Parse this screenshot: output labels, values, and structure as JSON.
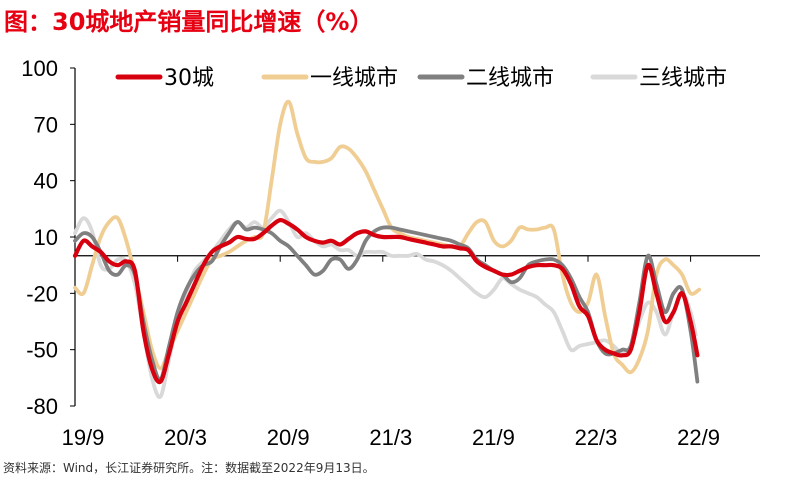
{
  "title": "图：30城地产销量同比增速（%）",
  "source": "资料来源：Wind，长江证券研究所。注：数据截至2022年9月13日。",
  "chart_data": {
    "type": "line",
    "title": "图：30城地产销量同比增速（%）",
    "xlabel": "",
    "ylabel": "",
    "ylim": [
      -80,
      100
    ],
    "yticks": [
      "100",
      "70",
      "40",
      "10",
      "-20",
      "-50",
      "-80"
    ],
    "xlim": [
      0,
      36.5
    ],
    "xticks": [
      {
        "label": "19/9",
        "x": 0
      },
      {
        "label": "20/3",
        "x": 6
      },
      {
        "label": "20/9",
        "x": 12
      },
      {
        "label": "21/3",
        "x": 18
      },
      {
        "label": "21/9",
        "x": 24
      },
      {
        "label": "22/3",
        "x": 30
      },
      {
        "label": "22/9",
        "x": 36
      }
    ],
    "grid": false,
    "legend_position": "top",
    "series": [
      {
        "name": "30城",
        "color": "#d7000f",
        "points": [
          [
            0,
            0
          ],
          [
            0.5,
            8
          ],
          [
            1,
            5
          ],
          [
            1.5,
            2
          ],
          [
            2,
            -3
          ],
          [
            2.5,
            -5
          ],
          [
            3,
            -3
          ],
          [
            3.5,
            -8
          ],
          [
            4,
            -40
          ],
          [
            4.5,
            -60
          ],
          [
            5,
            -67
          ],
          [
            5.5,
            -52
          ],
          [
            6,
            -35
          ],
          [
            6.5,
            -25
          ],
          [
            7,
            -15
          ],
          [
            7.5,
            -5
          ],
          [
            8,
            2
          ],
          [
            8.5,
            5
          ],
          [
            9,
            7
          ],
          [
            9.5,
            10
          ],
          [
            10,
            9
          ],
          [
            10.5,
            9
          ],
          [
            11,
            12
          ],
          [
            11.5,
            16
          ],
          [
            12,
            19
          ],
          [
            12.5,
            17
          ],
          [
            13,
            14
          ],
          [
            13.5,
            10
          ],
          [
            14,
            8
          ],
          [
            14.5,
            7
          ],
          [
            15,
            8
          ],
          [
            15.5,
            6
          ],
          [
            16,
            9
          ],
          [
            16.5,
            12
          ],
          [
            17,
            13
          ],
          [
            17.5,
            11
          ],
          [
            18,
            10
          ],
          [
            18.5,
            10
          ],
          [
            19,
            10
          ],
          [
            19.5,
            9
          ],
          [
            20,
            8
          ],
          [
            20.5,
            7
          ],
          [
            21,
            6
          ],
          [
            21.5,
            5
          ],
          [
            22,
            5
          ],
          [
            22.5,
            4
          ],
          [
            23,
            3
          ],
          [
            23.5,
            -3
          ],
          [
            24,
            -6
          ],
          [
            24.5,
            -8
          ],
          [
            25,
            -10
          ],
          [
            25.5,
            -10
          ],
          [
            26,
            -8
          ],
          [
            26.5,
            -6
          ],
          [
            27,
            -5
          ],
          [
            27.5,
            -5
          ],
          [
            28,
            -5
          ],
          [
            28.5,
            -7
          ],
          [
            29,
            -15
          ],
          [
            29.5,
            -27
          ],
          [
            30,
            -32
          ],
          [
            30.5,
            -45
          ],
          [
            31,
            -50
          ],
          [
            31.5,
            -52
          ],
          [
            32,
            -53
          ],
          [
            32.5,
            -50
          ],
          [
            33,
            -30
          ],
          [
            33.5,
            -5
          ],
          [
            34,
            -20
          ],
          [
            34.5,
            -35
          ],
          [
            35,
            -30
          ],
          [
            35.5,
            -20
          ],
          [
            36,
            -35
          ],
          [
            36.4,
            -53
          ]
        ]
      },
      {
        "name": "一线城市",
        "color": "#f0cd92",
        "points": [
          [
            0,
            -17
          ],
          [
            0.5,
            -20
          ],
          [
            1,
            -5
          ],
          [
            1.5,
            10
          ],
          [
            2,
            18
          ],
          [
            2.5,
            20
          ],
          [
            3,
            8
          ],
          [
            3.5,
            -10
          ],
          [
            4,
            -30
          ],
          [
            4.5,
            -50
          ],
          [
            5,
            -60
          ],
          [
            5.5,
            -50
          ],
          [
            6,
            -40
          ],
          [
            6.5,
            -30
          ],
          [
            7,
            -20
          ],
          [
            7.5,
            -10
          ],
          [
            8,
            -2
          ],
          [
            8.5,
            0
          ],
          [
            9,
            2
          ],
          [
            9.5,
            5
          ],
          [
            10,
            8
          ],
          [
            10.5,
            10
          ],
          [
            11,
            12
          ],
          [
            11.5,
            40
          ],
          [
            12,
            70
          ],
          [
            12.5,
            82
          ],
          [
            13,
            65
          ],
          [
            13.5,
            52
          ],
          [
            14,
            50
          ],
          [
            14.5,
            50
          ],
          [
            15,
            52
          ],
          [
            15.5,
            58
          ],
          [
            16,
            57
          ],
          [
            16.5,
            52
          ],
          [
            17,
            45
          ],
          [
            17.5,
            35
          ],
          [
            18,
            25
          ],
          [
            18.5,
            15
          ],
          [
            19,
            12
          ],
          [
            19.5,
            10
          ],
          [
            20,
            9
          ],
          [
            20.5,
            8
          ],
          [
            21,
            7
          ],
          [
            21.5,
            6
          ],
          [
            22,
            5
          ],
          [
            22.5,
            5
          ],
          [
            23,
            12
          ],
          [
            23.5,
            18
          ],
          [
            24,
            18
          ],
          [
            24.5,
            8
          ],
          [
            25,
            5
          ],
          [
            25.5,
            8
          ],
          [
            26,
            15
          ],
          [
            26.5,
            14
          ],
          [
            27,
            14
          ],
          [
            27.5,
            15
          ],
          [
            28,
            14
          ],
          [
            28.5,
            -10
          ],
          [
            29,
            -25
          ],
          [
            29.5,
            -30
          ],
          [
            30,
            -25
          ],
          [
            30.5,
            -10
          ],
          [
            31,
            -32
          ],
          [
            31.5,
            -52
          ],
          [
            32,
            -58
          ],
          [
            32.5,
            -62
          ],
          [
            33,
            -55
          ],
          [
            33.5,
            -40
          ],
          [
            34,
            -10
          ],
          [
            34.5,
            -2
          ],
          [
            35,
            -5
          ],
          [
            35.5,
            -10
          ],
          [
            36,
            -20
          ],
          [
            36.5,
            -18
          ]
        ]
      },
      {
        "name": "二线城市",
        "color": "#808080",
        "points": [
          [
            0,
            8
          ],
          [
            0.5,
            12
          ],
          [
            1,
            10
          ],
          [
            1.5,
            2
          ],
          [
            2,
            -8
          ],
          [
            2.5,
            -10
          ],
          [
            3,
            -5
          ],
          [
            3.5,
            -10
          ],
          [
            4,
            -35
          ],
          [
            4.5,
            -55
          ],
          [
            5,
            -66
          ],
          [
            5.5,
            -48
          ],
          [
            6,
            -30
          ],
          [
            6.5,
            -18
          ],
          [
            7,
            -10
          ],
          [
            7.5,
            -5
          ],
          [
            8,
            -3
          ],
          [
            8.5,
            5
          ],
          [
            9,
            12
          ],
          [
            9.5,
            18
          ],
          [
            10,
            14
          ],
          [
            10.5,
            15
          ],
          [
            11,
            14
          ],
          [
            11.5,
            12
          ],
          [
            12,
            8
          ],
          [
            12.5,
            5
          ],
          [
            13,
            0
          ],
          [
            13.5,
            -5
          ],
          [
            14,
            -10
          ],
          [
            14.5,
            -8
          ],
          [
            15,
            -2
          ],
          [
            15.5,
            -2
          ],
          [
            16,
            -7
          ],
          [
            16.5,
            -2
          ],
          [
            17,
            8
          ],
          [
            17.5,
            13
          ],
          [
            18,
            15
          ],
          [
            18.5,
            15
          ],
          [
            19,
            14
          ],
          [
            19.5,
            13
          ],
          [
            20,
            12
          ],
          [
            20.5,
            11
          ],
          [
            21,
            10
          ],
          [
            21.5,
            9
          ],
          [
            22,
            8
          ],
          [
            22.5,
            6
          ],
          [
            23,
            4
          ],
          [
            23.5,
            -2
          ],
          [
            24,
            -5
          ],
          [
            24.5,
            -8
          ],
          [
            25,
            -10
          ],
          [
            25.5,
            -14
          ],
          [
            26,
            -12
          ],
          [
            26.5,
            -5
          ],
          [
            27,
            -3
          ],
          [
            27.5,
            -2
          ],
          [
            28,
            -2
          ],
          [
            28.5,
            -5
          ],
          [
            29,
            -12
          ],
          [
            29.5,
            -22
          ],
          [
            30,
            -30
          ],
          [
            30.5,
            -45
          ],
          [
            31,
            -52
          ],
          [
            31.5,
            -52
          ],
          [
            32,
            -50
          ],
          [
            32.5,
            -48
          ],
          [
            33,
            -25
          ],
          [
            33.5,
            0
          ],
          [
            34,
            -15
          ],
          [
            34.5,
            -30
          ],
          [
            35,
            -20
          ],
          [
            35.5,
            -18
          ],
          [
            36,
            -40
          ],
          [
            36.4,
            -67
          ]
        ]
      },
      {
        "name": "三线城市",
        "color": "#d9d9d9",
        "points": [
          [
            0,
            12
          ],
          [
            0.5,
            20
          ],
          [
            1,
            13
          ],
          [
            1.5,
            -5
          ],
          [
            2,
            -7
          ],
          [
            2.5,
            -2
          ],
          [
            3,
            -3
          ],
          [
            3.5,
            -15
          ],
          [
            4,
            -40
          ],
          [
            4.5,
            -65
          ],
          [
            5,
            -75
          ],
          [
            5.5,
            -55
          ],
          [
            6,
            -35
          ],
          [
            6.5,
            -20
          ],
          [
            7,
            -8
          ],
          [
            7.5,
            -3
          ],
          [
            8,
            2
          ],
          [
            8.5,
            8
          ],
          [
            9,
            14
          ],
          [
            9.5,
            18
          ],
          [
            10,
            15
          ],
          [
            10.5,
            18
          ],
          [
            11,
            15
          ],
          [
            11.5,
            20
          ],
          [
            12,
            24
          ],
          [
            12.5,
            18
          ],
          [
            13,
            10
          ],
          [
            13.5,
            12
          ],
          [
            14,
            8
          ],
          [
            14.5,
            5
          ],
          [
            15,
            6
          ],
          [
            15.5,
            3
          ],
          [
            16,
            3
          ],
          [
            16.5,
            0
          ],
          [
            17,
            2
          ],
          [
            17.5,
            2
          ],
          [
            18,
            2
          ],
          [
            18.5,
            0
          ],
          [
            19,
            0
          ],
          [
            19.5,
            0
          ],
          [
            20,
            1
          ],
          [
            20.5,
            -2
          ],
          [
            21,
            -3
          ],
          [
            21.5,
            -5
          ],
          [
            22,
            -8
          ],
          [
            22.5,
            -12
          ],
          [
            23,
            -16
          ],
          [
            23.5,
            -20
          ],
          [
            24,
            -22
          ],
          [
            24.5,
            -18
          ],
          [
            25,
            -12
          ],
          [
            25.5,
            -15
          ],
          [
            26,
            -18
          ],
          [
            26.5,
            -20
          ],
          [
            27,
            -22
          ],
          [
            27.5,
            -26
          ],
          [
            28,
            -30
          ],
          [
            28.5,
            -40
          ],
          [
            29,
            -50
          ],
          [
            29.5,
            -48
          ],
          [
            30,
            -47
          ],
          [
            30.5,
            -46
          ],
          [
            31,
            -45
          ],
          [
            31.5,
            -48
          ],
          [
            32,
            -52
          ],
          [
            32.5,
            -48
          ],
          [
            33,
            -35
          ],
          [
            33.5,
            -25
          ],
          [
            34,
            -30
          ],
          [
            34.5,
            -42
          ],
          [
            35,
            -30
          ],
          [
            35.5,
            -20
          ],
          [
            36,
            -30
          ],
          [
            36.3,
            -42
          ]
        ]
      }
    ]
  }
}
